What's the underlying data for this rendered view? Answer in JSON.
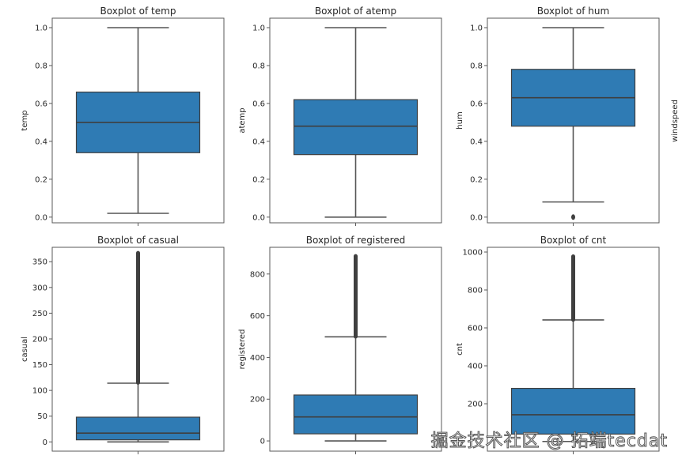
{
  "chart_data": [
    {
      "type": "box",
      "title": "Boxplot of temp",
      "ylabel": "temp",
      "ylim": [
        -0.03,
        1.05
      ],
      "yticks": [
        0.0,
        0.2,
        0.4,
        0.6,
        0.8,
        1.0
      ],
      "ytick_labels": [
        "0.0",
        "0.2",
        "0.4",
        "0.6",
        "0.8",
        "1.0"
      ],
      "whisker_low": 0.02,
      "q1": 0.34,
      "median": 0.5,
      "q3": 0.66,
      "whisker_high": 1.0,
      "outliers": []
    },
    {
      "type": "box",
      "title": "Boxplot of atemp",
      "ylabel": "atemp",
      "ylim": [
        -0.03,
        1.05
      ],
      "yticks": [
        0.0,
        0.2,
        0.4,
        0.6,
        0.8,
        1.0
      ],
      "ytick_labels": [
        "0.0",
        "0.2",
        "0.4",
        "0.6",
        "0.8",
        "1.0"
      ],
      "whisker_low": 0.0,
      "q1": 0.33,
      "median": 0.48,
      "q3": 0.62,
      "whisker_high": 1.0,
      "outliers": []
    },
    {
      "type": "box",
      "title": "Boxplot of hum",
      "ylabel": "hum",
      "ylim": [
        -0.03,
        1.05
      ],
      "yticks": [
        0.0,
        0.2,
        0.4,
        0.6,
        0.8,
        1.0
      ],
      "ytick_labels": [
        "0.0",
        "0.2",
        "0.4",
        "0.6",
        "0.8",
        "1.0"
      ],
      "whisker_low": 0.08,
      "q1": 0.48,
      "median": 0.63,
      "q3": 0.78,
      "whisker_high": 1.0,
      "outliers": [
        0.0
      ]
    },
    {
      "type": "box",
      "title": "Boxplot of casual",
      "ylabel": "casual",
      "ylim": [
        -18,
        378
      ],
      "yticks": [
        0,
        50,
        100,
        150,
        200,
        250,
        300,
        350
      ],
      "ytick_labels": [
        "0",
        "50",
        "100",
        "150",
        "200",
        "250",
        "300",
        "350"
      ],
      "whisker_low": 0,
      "q1": 4,
      "median": 17,
      "q3": 48,
      "whisker_high": 114,
      "outlier_range": [
        115,
        367
      ]
    },
    {
      "type": "box",
      "title": "Boxplot of registered",
      "ylabel": "registered",
      "ylim": [
        -49,
        928
      ],
      "yticks": [
        0,
        200,
        400,
        600,
        800
      ],
      "ytick_labels": [
        "0",
        "200",
        "400",
        "600",
        "800"
      ],
      "whisker_low": 0,
      "q1": 34,
      "median": 115,
      "q3": 220,
      "whisker_high": 499,
      "outlier_range": [
        500,
        886
      ]
    },
    {
      "type": "box",
      "title": "Boxplot of cnt",
      "ylabel": "cnt",
      "ylim": [
        -50,
        1025
      ],
      "yticks": [
        200,
        400,
        600,
        800,
        1000
      ],
      "ytick_labels": [
        "200",
        "400",
        "600",
        "800",
        "1000"
      ],
      "whisker_low": 1,
      "q1": 40,
      "median": 142,
      "q3": 281,
      "whisker_high": 642,
      "outlier_range": [
        643,
        977
      ]
    }
  ],
  "extra_labels": {
    "windspeed_ylabel": "windspeed"
  },
  "watermark": "掘金技术社区 @ 拓端tecdat"
}
